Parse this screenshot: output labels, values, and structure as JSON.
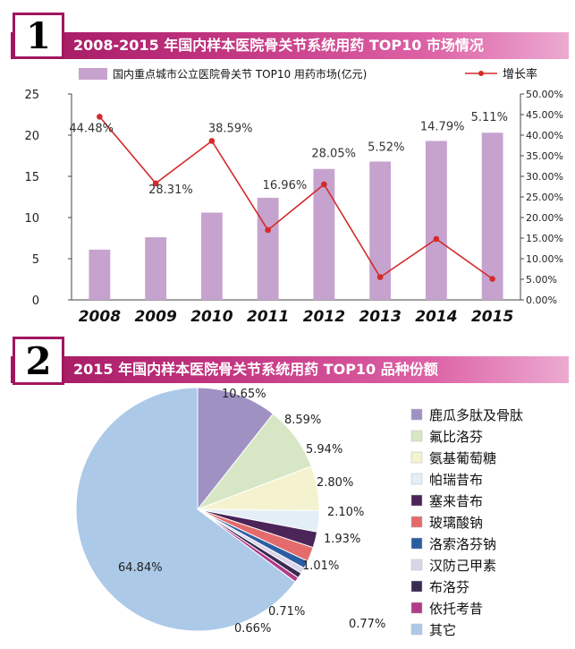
{
  "section1": {
    "badge": "1",
    "title": "2008-2015 年国内样本医院骨关节系统用药 TOP10 市场情况"
  },
  "section2": {
    "badge": "2",
    "title": "2015 年国内样本医院骨关节系统用药 TOP10 品种份额"
  },
  "colors": {
    "banner": "#a1165f",
    "bar": "#c6a3ce",
    "line": "#d42a2a"
  },
  "chart_data": [
    {
      "type": "bar",
      "categories": [
        "2008",
        "2009",
        "2010",
        "2011",
        "2012",
        "2013",
        "2014",
        "2015"
      ],
      "series": [
        {
          "name": "国内重点城市公立医院骨关节 TOP10 用药市场(亿元)",
          "chart": "bar",
          "axis": "left",
          "values": [
            6.1,
            7.6,
            10.6,
            12.4,
            15.9,
            16.8,
            19.3,
            20.3
          ]
        },
        {
          "name": "增长率",
          "chart": "line",
          "axis": "right",
          "values": [
            44.48,
            28.31,
            38.59,
            16.96,
            28.05,
            5.52,
            14.79,
            5.11
          ],
          "labels": [
            "44.48%",
            "28.31%",
            "38.59%",
            "16.96%",
            "28.05%",
            "5.52%",
            "14.79%",
            "5.11%"
          ]
        }
      ],
      "ylim": [
        0,
        25
      ],
      "yticks": [
        "0",
        "5",
        "10",
        "15",
        "20",
        "25"
      ],
      "y2lim": [
        0,
        50
      ],
      "y2ticks": [
        "0.00%",
        "5.00%",
        "10.00%",
        "15.00%",
        "20.00%",
        "25.00%",
        "30.00%",
        "35.00%",
        "40.00%",
        "45.00%",
        "50.00%"
      ],
      "legend": "top"
    },
    {
      "type": "pie",
      "slices": [
        {
          "name": "鹿瓜多肽及骨肽",
          "value": 10.65,
          "label": "10.65%",
          "color": "#9f92c3"
        },
        {
          "name": "氟比洛芬",
          "value": 8.59,
          "label": "8.59%",
          "color": "#d7e7c5"
        },
        {
          "name": "氨基葡萄糖",
          "value": 5.94,
          "label": "5.94%",
          "color": "#f5f3cf"
        },
        {
          "name": "帕瑞昔布",
          "value": 2.8,
          "label": "2.80%",
          "color": "#e3eef7"
        },
        {
          "name": "塞来昔布",
          "value": 2.1,
          "label": "2.10%",
          "color": "#4b2458"
        },
        {
          "name": "玻璃酸钠",
          "value": 1.93,
          "label": "1.93%",
          "color": "#e46b6b"
        },
        {
          "name": "洛索洛芬钠",
          "value": 1.01,
          "label": "1.01%",
          "color": "#2b5da3"
        },
        {
          "name": "汉防己甲素",
          "value": 0.77,
          "label": "0.77%",
          "color": "#dad6ea"
        },
        {
          "name": "布洛芬",
          "value": 0.71,
          "label": "0.71%",
          "color": "#3a2b52"
        },
        {
          "name": "依托考昔",
          "value": 0.66,
          "label": "0.66%",
          "color": "#b23a8a"
        },
        {
          "name": "其它",
          "value": 64.84,
          "label": "64.84%",
          "color": "#acc9e8"
        }
      ],
      "legend": "right"
    }
  ]
}
